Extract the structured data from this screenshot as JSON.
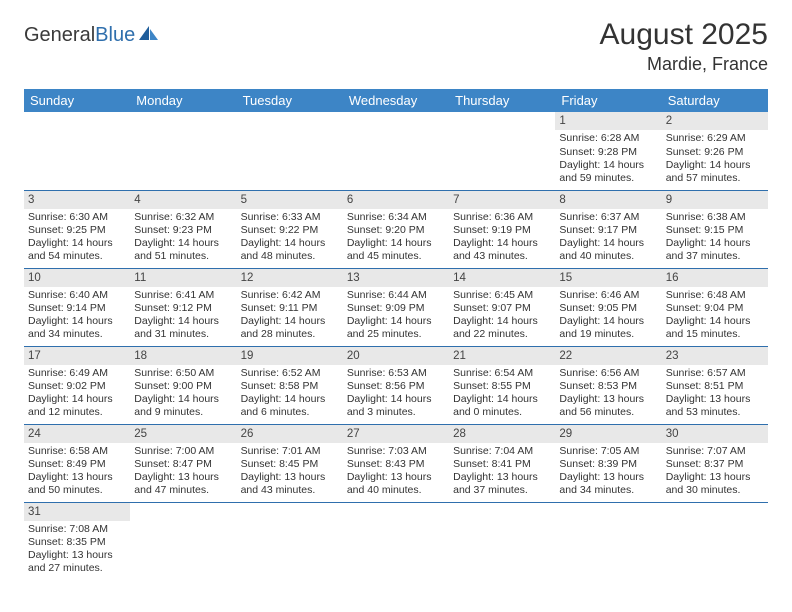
{
  "brand": {
    "part1": "General",
    "part2": "Blue"
  },
  "title": "August 2025",
  "location": "Mardie, France",
  "colors": {
    "header_bg": "#3d85c6",
    "header_text": "#ffffff",
    "row_divider": "#2f6fad",
    "daynum_bg": "#e8e8e8",
    "text": "#333333",
    "brand_dark": "#3a3a3a",
    "brand_blue": "#2f6fad",
    "page_bg": "#ffffff"
  },
  "typography": {
    "title_fontsize": 30,
    "location_fontsize": 18,
    "dayheader_fontsize": 13,
    "cell_fontsize": 10.5
  },
  "day_headers": [
    "Sunday",
    "Monday",
    "Tuesday",
    "Wednesday",
    "Thursday",
    "Friday",
    "Saturday"
  ],
  "weeks": [
    [
      null,
      null,
      null,
      null,
      null,
      {
        "n": "1",
        "sunrise": "Sunrise: 6:28 AM",
        "sunset": "Sunset: 9:28 PM",
        "daylight": "Daylight: 14 hours and 59 minutes."
      },
      {
        "n": "2",
        "sunrise": "Sunrise: 6:29 AM",
        "sunset": "Sunset: 9:26 PM",
        "daylight": "Daylight: 14 hours and 57 minutes."
      }
    ],
    [
      {
        "n": "3",
        "sunrise": "Sunrise: 6:30 AM",
        "sunset": "Sunset: 9:25 PM",
        "daylight": "Daylight: 14 hours and 54 minutes."
      },
      {
        "n": "4",
        "sunrise": "Sunrise: 6:32 AM",
        "sunset": "Sunset: 9:23 PM",
        "daylight": "Daylight: 14 hours and 51 minutes."
      },
      {
        "n": "5",
        "sunrise": "Sunrise: 6:33 AM",
        "sunset": "Sunset: 9:22 PM",
        "daylight": "Daylight: 14 hours and 48 minutes."
      },
      {
        "n": "6",
        "sunrise": "Sunrise: 6:34 AM",
        "sunset": "Sunset: 9:20 PM",
        "daylight": "Daylight: 14 hours and 45 minutes."
      },
      {
        "n": "7",
        "sunrise": "Sunrise: 6:36 AM",
        "sunset": "Sunset: 9:19 PM",
        "daylight": "Daylight: 14 hours and 43 minutes."
      },
      {
        "n": "8",
        "sunrise": "Sunrise: 6:37 AM",
        "sunset": "Sunset: 9:17 PM",
        "daylight": "Daylight: 14 hours and 40 minutes."
      },
      {
        "n": "9",
        "sunrise": "Sunrise: 6:38 AM",
        "sunset": "Sunset: 9:15 PM",
        "daylight": "Daylight: 14 hours and 37 minutes."
      }
    ],
    [
      {
        "n": "10",
        "sunrise": "Sunrise: 6:40 AM",
        "sunset": "Sunset: 9:14 PM",
        "daylight": "Daylight: 14 hours and 34 minutes."
      },
      {
        "n": "11",
        "sunrise": "Sunrise: 6:41 AM",
        "sunset": "Sunset: 9:12 PM",
        "daylight": "Daylight: 14 hours and 31 minutes."
      },
      {
        "n": "12",
        "sunrise": "Sunrise: 6:42 AM",
        "sunset": "Sunset: 9:11 PM",
        "daylight": "Daylight: 14 hours and 28 minutes."
      },
      {
        "n": "13",
        "sunrise": "Sunrise: 6:44 AM",
        "sunset": "Sunset: 9:09 PM",
        "daylight": "Daylight: 14 hours and 25 minutes."
      },
      {
        "n": "14",
        "sunrise": "Sunrise: 6:45 AM",
        "sunset": "Sunset: 9:07 PM",
        "daylight": "Daylight: 14 hours and 22 minutes."
      },
      {
        "n": "15",
        "sunrise": "Sunrise: 6:46 AM",
        "sunset": "Sunset: 9:05 PM",
        "daylight": "Daylight: 14 hours and 19 minutes."
      },
      {
        "n": "16",
        "sunrise": "Sunrise: 6:48 AM",
        "sunset": "Sunset: 9:04 PM",
        "daylight": "Daylight: 14 hours and 15 minutes."
      }
    ],
    [
      {
        "n": "17",
        "sunrise": "Sunrise: 6:49 AM",
        "sunset": "Sunset: 9:02 PM",
        "daylight": "Daylight: 14 hours and 12 minutes."
      },
      {
        "n": "18",
        "sunrise": "Sunrise: 6:50 AM",
        "sunset": "Sunset: 9:00 PM",
        "daylight": "Daylight: 14 hours and 9 minutes."
      },
      {
        "n": "19",
        "sunrise": "Sunrise: 6:52 AM",
        "sunset": "Sunset: 8:58 PM",
        "daylight": "Daylight: 14 hours and 6 minutes."
      },
      {
        "n": "20",
        "sunrise": "Sunrise: 6:53 AM",
        "sunset": "Sunset: 8:56 PM",
        "daylight": "Daylight: 14 hours and 3 minutes."
      },
      {
        "n": "21",
        "sunrise": "Sunrise: 6:54 AM",
        "sunset": "Sunset: 8:55 PM",
        "daylight": "Daylight: 14 hours and 0 minutes."
      },
      {
        "n": "22",
        "sunrise": "Sunrise: 6:56 AM",
        "sunset": "Sunset: 8:53 PM",
        "daylight": "Daylight: 13 hours and 56 minutes."
      },
      {
        "n": "23",
        "sunrise": "Sunrise: 6:57 AM",
        "sunset": "Sunset: 8:51 PM",
        "daylight": "Daylight: 13 hours and 53 minutes."
      }
    ],
    [
      {
        "n": "24",
        "sunrise": "Sunrise: 6:58 AM",
        "sunset": "Sunset: 8:49 PM",
        "daylight": "Daylight: 13 hours and 50 minutes."
      },
      {
        "n": "25",
        "sunrise": "Sunrise: 7:00 AM",
        "sunset": "Sunset: 8:47 PM",
        "daylight": "Daylight: 13 hours and 47 minutes."
      },
      {
        "n": "26",
        "sunrise": "Sunrise: 7:01 AM",
        "sunset": "Sunset: 8:45 PM",
        "daylight": "Daylight: 13 hours and 43 minutes."
      },
      {
        "n": "27",
        "sunrise": "Sunrise: 7:03 AM",
        "sunset": "Sunset: 8:43 PM",
        "daylight": "Daylight: 13 hours and 40 minutes."
      },
      {
        "n": "28",
        "sunrise": "Sunrise: 7:04 AM",
        "sunset": "Sunset: 8:41 PM",
        "daylight": "Daylight: 13 hours and 37 minutes."
      },
      {
        "n": "29",
        "sunrise": "Sunrise: 7:05 AM",
        "sunset": "Sunset: 8:39 PM",
        "daylight": "Daylight: 13 hours and 34 minutes."
      },
      {
        "n": "30",
        "sunrise": "Sunrise: 7:07 AM",
        "sunset": "Sunset: 8:37 PM",
        "daylight": "Daylight: 13 hours and 30 minutes."
      }
    ],
    [
      {
        "n": "31",
        "sunrise": "Sunrise: 7:08 AM",
        "sunset": "Sunset: 8:35 PM",
        "daylight": "Daylight: 13 hours and 27 minutes."
      },
      null,
      null,
      null,
      null,
      null,
      null
    ]
  ]
}
